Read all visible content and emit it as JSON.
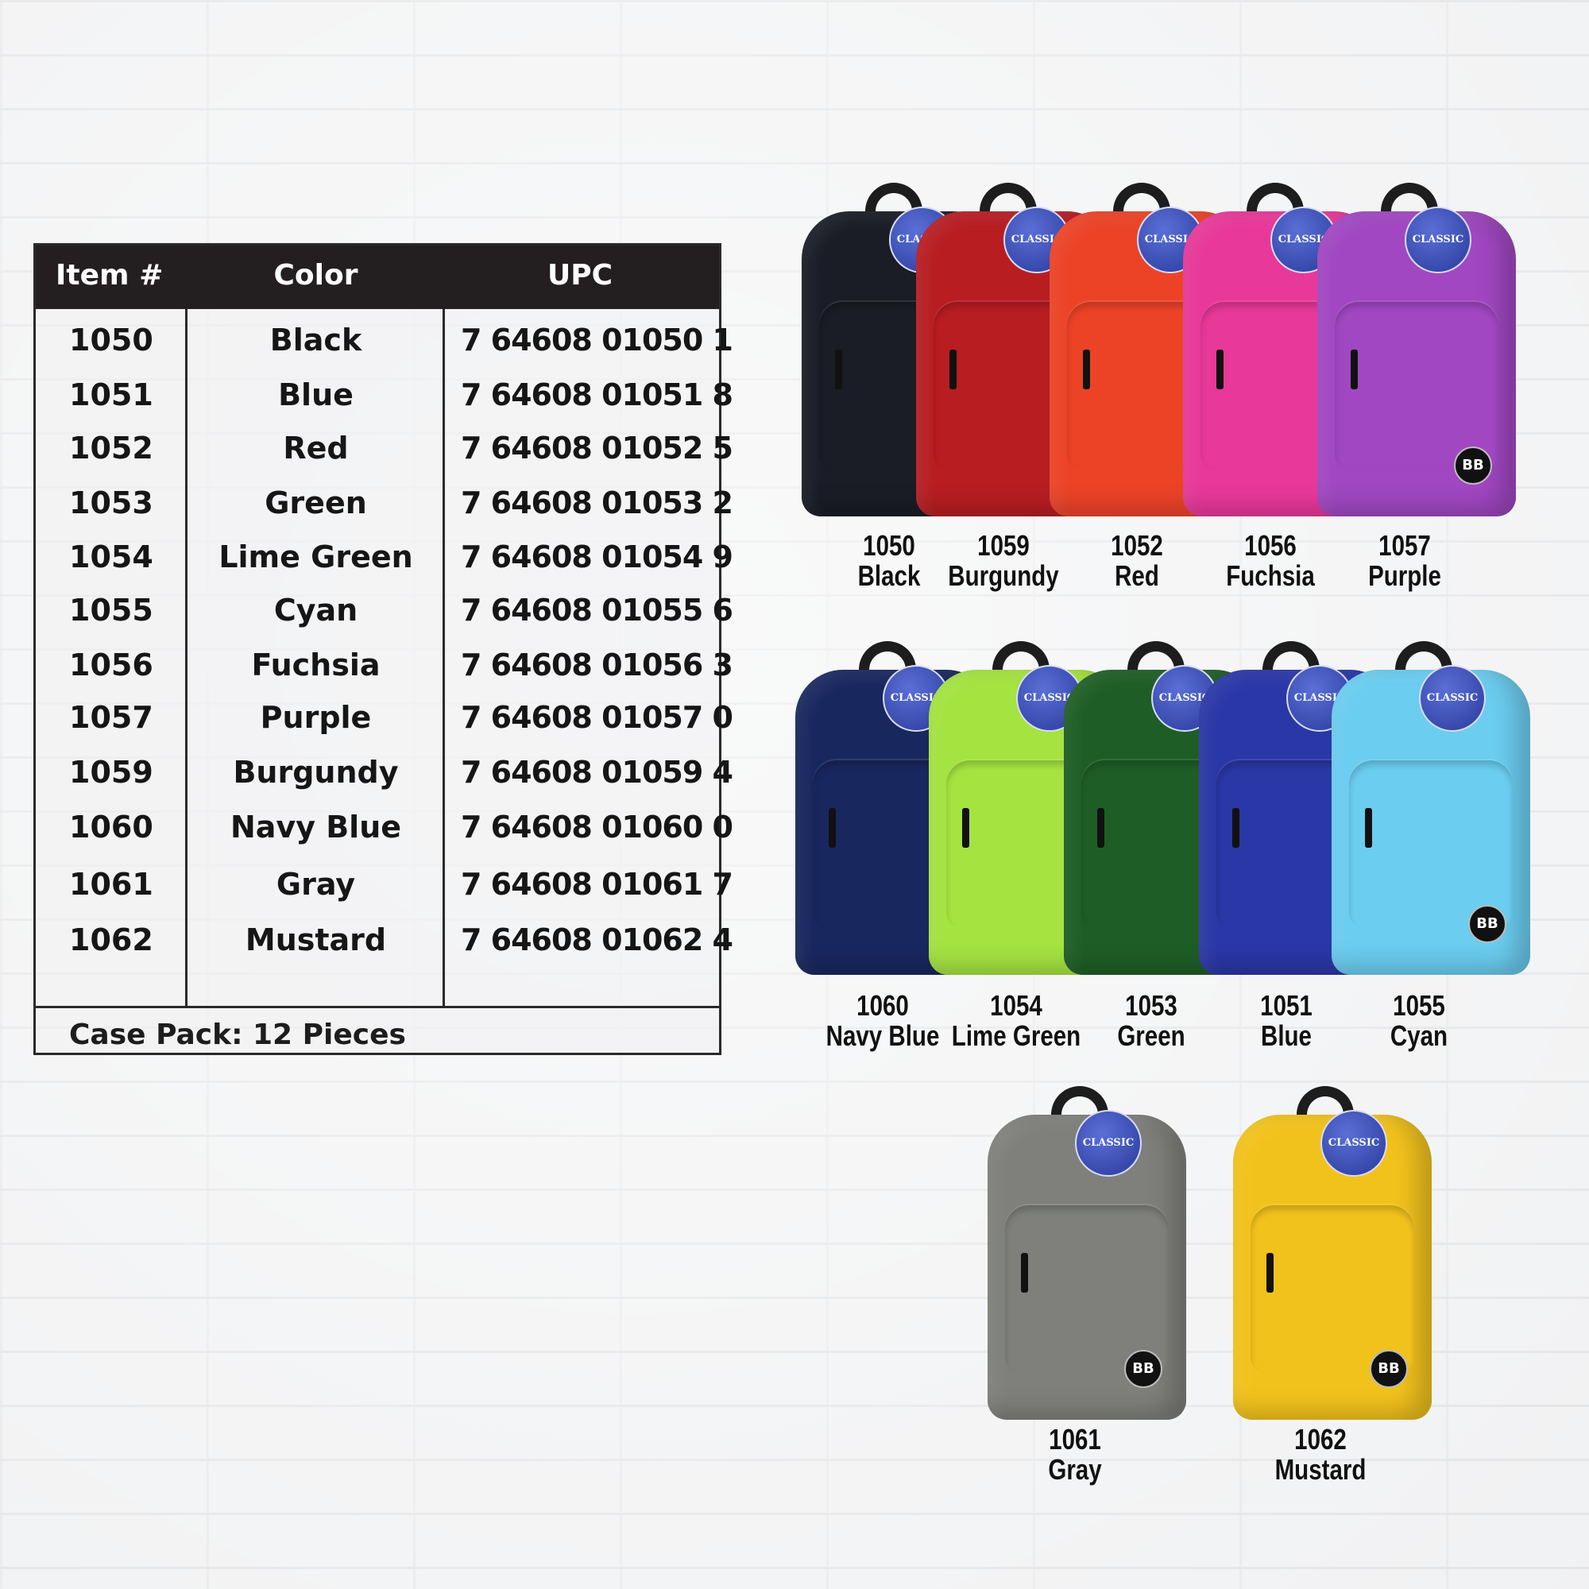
{
  "table": {
    "headers": {
      "item": "Item #",
      "color": "Color",
      "upc": "UPC"
    },
    "rows": [
      {
        "item": "1050",
        "color": "Black",
        "upc": "7 64608 01050 1"
      },
      {
        "item": "1051",
        "color": "Blue",
        "upc": "7 64608 01051 8"
      },
      {
        "item": "1052",
        "color": "Red",
        "upc": "7 64608 01052 5"
      },
      {
        "item": "1053",
        "color": "Green",
        "upc": "7 64608 01053 2"
      },
      {
        "item": "1054",
        "color": "Lime Green",
        "upc": "7 64608 01054 9"
      },
      {
        "item": "1055",
        "color": "Cyan",
        "upc": "7 64608 01055 6"
      },
      {
        "item": "1056",
        "color": "Fuchsia",
        "upc": "7 64608 01056 3"
      },
      {
        "item": "1057",
        "color": "Purple",
        "upc": "7 64608 01057 0"
      },
      {
        "item": "1059",
        "color": "Burgundy",
        "upc": "7 64608 01059 4"
      },
      {
        "item": "1060",
        "color": "Navy Blue",
        "upc": "7 64608 01060 0"
      },
      {
        "item": "1061",
        "color": "Gray",
        "upc": "7 64608 01061 7"
      },
      {
        "item": "1062",
        "color": "Mustard",
        "upc": "7 64608 01062 4"
      }
    ],
    "case_pack": "Case Pack: 12 Pieces"
  },
  "tag_text": "CLASSIC",
  "logo_text": "BB",
  "backpacks": [
    {
      "item": "1050",
      "name": "Black",
      "hex": "#1a1c26"
    },
    {
      "item": "1059",
      "name": "Burgundy",
      "hex": "#b81d22"
    },
    {
      "item": "1052",
      "name": "Red",
      "hex": "#ec4327"
    },
    {
      "item": "1056",
      "name": "Fuchsia",
      "hex": "#e8389a"
    },
    {
      "item": "1057",
      "name": "Purple",
      "hex": "#a147c2"
    },
    {
      "item": "1060",
      "name": "Navy Blue",
      "hex": "#18275e"
    },
    {
      "item": "1054",
      "name": "Lime Green",
      "hex": "#a4e340"
    },
    {
      "item": "1053",
      "name": "Green",
      "hex": "#1e5e26"
    },
    {
      "item": "1051",
      "name": "Blue",
      "hex": "#2a37a6"
    },
    {
      "item": "1055",
      "name": "Cyan",
      "hex": "#6bcdf0"
    },
    {
      "item": "1061",
      "name": "Gray",
      "hex": "#7f807c"
    },
    {
      "item": "1062",
      "name": "Mustard",
      "hex": "#f2c21c"
    }
  ]
}
